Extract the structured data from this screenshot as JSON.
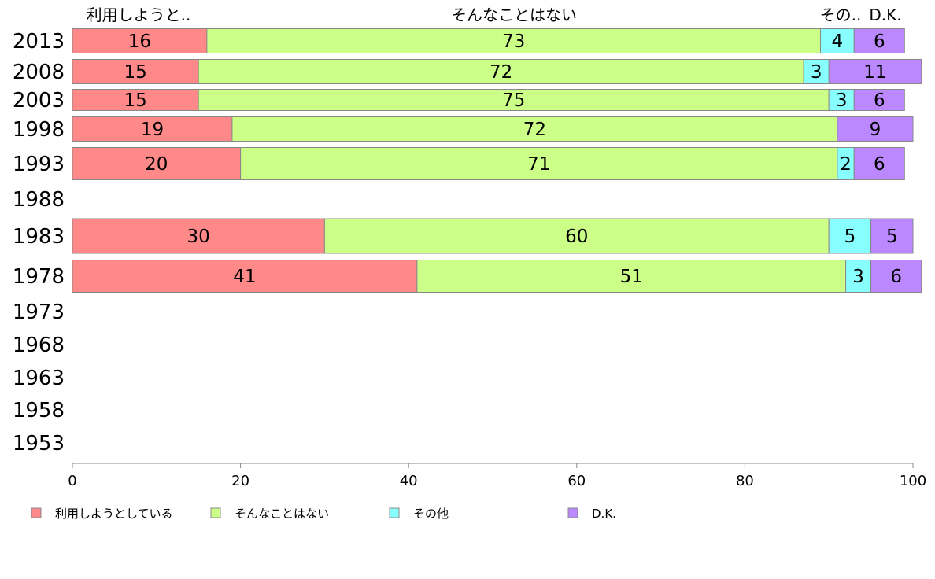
{
  "chart_data": {
    "type": "bar",
    "orientation": "horizontal",
    "stacked": true,
    "xlim": [
      0,
      100
    ],
    "x_ticks": [
      "0",
      "20",
      "40",
      "60",
      "80",
      "100"
    ],
    "grid": false,
    "legend_placement": "bottom",
    "categories": [
      "2013",
      "2008",
      "2003",
      "1998",
      "1993",
      "1988",
      "1983",
      "1978",
      "1973",
      "1968",
      "1963",
      "1958",
      "1953"
    ],
    "top_labels": [
      "利用しようと..",
      "そんなことはない",
      "その..",
      "D.K."
    ],
    "series": [
      {
        "name": "利用しようとしている",
        "color": "#ff8888",
        "values": [
          16,
          15,
          15,
          19,
          20,
          null,
          30,
          41,
          null,
          null,
          null,
          null,
          null
        ]
      },
      {
        "name": "そんなことはない",
        "color": "#ccff88",
        "values": [
          73,
          72,
          75,
          72,
          71,
          null,
          60,
          51,
          null,
          null,
          null,
          null,
          null
        ]
      },
      {
        "name": "その他",
        "color": "#88ffff",
        "values": [
          4,
          3,
          3,
          0,
          2,
          null,
          5,
          3,
          null,
          null,
          null,
          null,
          null
        ]
      },
      {
        "name": "D.K.",
        "color": "#bb88ff",
        "values": [
          6,
          11,
          6,
          9,
          6,
          null,
          5,
          6,
          null,
          null,
          null,
          null,
          null
        ]
      }
    ]
  }
}
